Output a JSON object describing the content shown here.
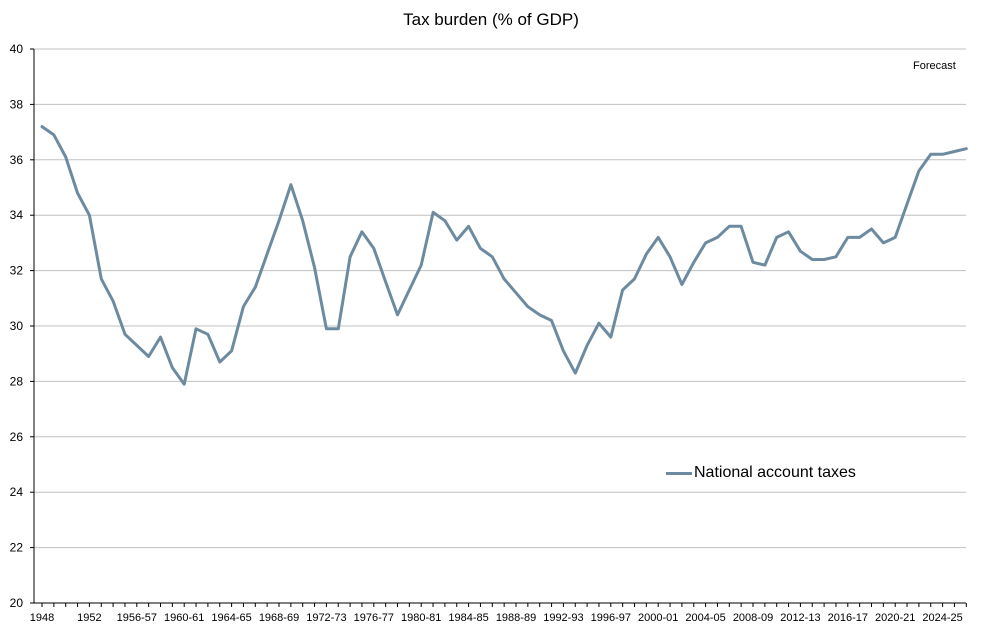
{
  "chart_data": {
    "type": "line",
    "title": "Tax burden (% of GDP)",
    "xlabel": "",
    "ylabel": "",
    "ylim": [
      20,
      40
    ],
    "y_ticks": [
      "20",
      "22",
      "24",
      "26",
      "28",
      "30",
      "32",
      "34",
      "36",
      "38",
      "40"
    ],
    "x_tick_labels": [
      "1948",
      "1952",
      "1956-57",
      "1960-61",
      "1964-65",
      "1968-69",
      "1972-73",
      "1976-77",
      "1980-81",
      "1984-85",
      "1988-89",
      "1992-93",
      "1996-97",
      "2000-01",
      "2004-05",
      "2008-09",
      "2012-13",
      "2016-17",
      "2020-21",
      "2024-25"
    ],
    "x_tick_index": [
      0,
      4,
      8,
      12,
      16,
      20,
      24,
      28,
      32,
      36,
      40,
      44,
      48,
      52,
      56,
      60,
      64,
      68,
      72,
      76
    ],
    "annotation": "Forecast",
    "legend": "National account taxes",
    "color": "#6d8ba0",
    "series": [
      {
        "name": "National account taxes",
        "values": [
          37.2,
          36.9,
          36.1,
          34.8,
          34.0,
          31.7,
          30.9,
          29.7,
          29.3,
          28.9,
          29.6,
          28.5,
          27.9,
          29.9,
          29.7,
          28.7,
          29.1,
          30.7,
          31.4,
          32.6,
          33.8,
          35.1,
          33.8,
          32.1,
          29.9,
          29.9,
          32.5,
          33.4,
          32.8,
          31.6,
          30.4,
          31.3,
          32.2,
          34.1,
          33.8,
          33.1,
          33.6,
          32.8,
          32.5,
          31.7,
          31.2,
          30.7,
          30.4,
          30.2,
          29.1,
          28.3,
          29.3,
          30.1,
          29.6,
          31.3,
          31.7,
          32.6,
          33.2,
          32.5,
          31.5,
          32.3,
          33.0,
          33.2,
          33.6,
          33.6,
          32.3,
          32.2,
          33.2,
          33.4,
          32.7,
          32.4,
          32.4,
          32.5,
          33.2,
          33.2,
          33.5,
          33.0,
          33.2,
          34.4,
          35.6,
          36.2,
          36.2,
          36.3,
          36.4
        ]
      }
    ]
  }
}
